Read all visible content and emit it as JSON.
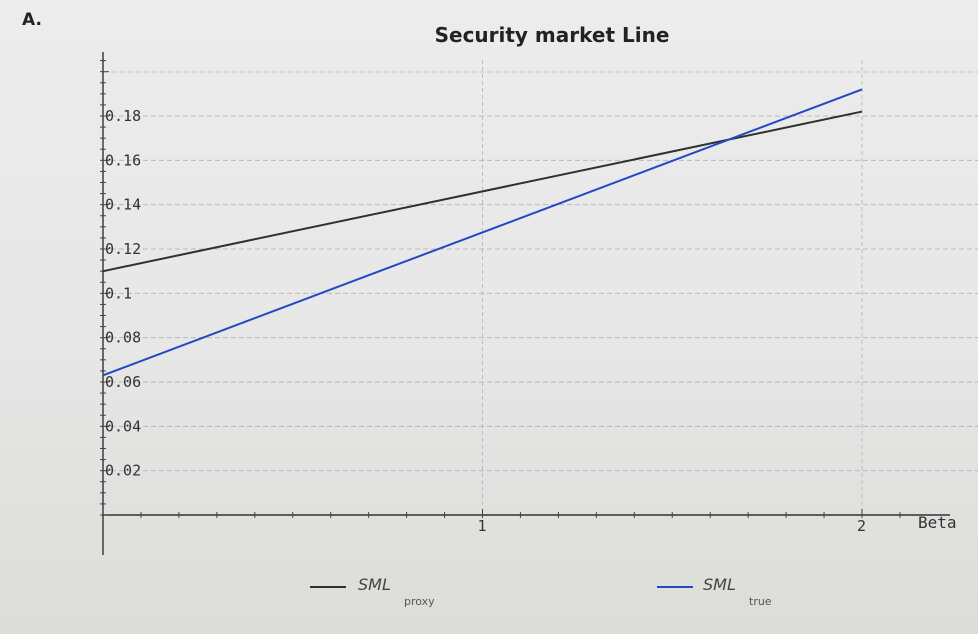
{
  "figure_label": "A.",
  "chart_data": {
    "type": "line",
    "title": "Security market Line",
    "xlabel": "Beta",
    "ylabel": "",
    "xlim": [
      0,
      2.2
    ],
    "ylim": [
      -0.005,
      0.205
    ],
    "x_ticks": [
      1,
      2
    ],
    "x_tick_labels": [
      "1",
      "2"
    ],
    "y_ticks": [
      0.02,
      0.04,
      0.06,
      0.08,
      0.1,
      0.12,
      0.14,
      0.16,
      0.18
    ],
    "y_tick_labels": [
      "0.02",
      "0.04",
      "0.06",
      "0.08",
      "0.1",
      "0.12",
      "0.14",
      "0.16",
      "0.18"
    ],
    "grid": true,
    "legend_position": "bottom",
    "series": [
      {
        "name": "SML",
        "subscript": "proxy",
        "color": "#2c322c",
        "x": [
          0,
          2
        ],
        "y": [
          0.11,
          0.182
        ]
      },
      {
        "name": "SML",
        "subscript": "true",
        "color": "#2547c4",
        "x": [
          0,
          2
        ],
        "y": [
          0.063,
          0.192
        ]
      }
    ]
  }
}
